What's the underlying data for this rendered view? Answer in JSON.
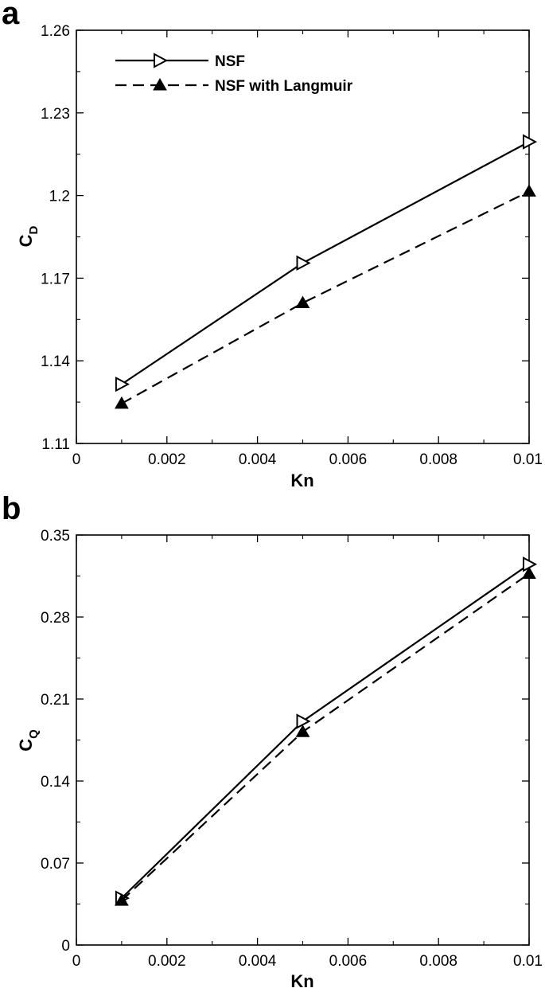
{
  "chart_data": [
    {
      "type": "line",
      "panel_label": "a",
      "xlabel": "Kn",
      "ylabel": {
        "main": "C",
        "sub": "D"
      },
      "xlim": [
        0,
        0.01
      ],
      "ylim": [
        1.11,
        1.26
      ],
      "xticks": [
        "0",
        "0.002",
        "0.004",
        "0.006",
        "0.008",
        "0.01"
      ],
      "yticks": [
        "1.11",
        "1.14",
        "1.17",
        "1.2",
        "1.23",
        "1.26"
      ],
      "grid": false,
      "legend_position": "top-left",
      "x": [
        0.001,
        0.005,
        0.01
      ],
      "series": [
        {
          "name": "NSF",
          "values": [
            1.1315,
            1.1755,
            1.2195
          ],
          "line_style": "solid",
          "marker": "open-right-triangle",
          "color": "#000000"
        },
        {
          "name": "NSF with Langmuir",
          "values": [
            1.1245,
            1.161,
            1.2015
          ],
          "line_style": "dashed",
          "marker": "filled-up-triangle",
          "color": "#000000"
        }
      ]
    },
    {
      "type": "line",
      "panel_label": "b",
      "xlabel": "Kn",
      "ylabel": {
        "main": "C",
        "sub": "Q"
      },
      "xlim": [
        0,
        0.01
      ],
      "ylim": [
        0,
        0.35
      ],
      "xticks": [
        "0",
        "0.002",
        "0.004",
        "0.006",
        "0.008",
        "0.01"
      ],
      "yticks": [
        "0",
        "0.07",
        "0.14",
        "0.21",
        "0.28",
        "0.35"
      ],
      "grid": false,
      "x": [
        0.001,
        0.005,
        0.01
      ],
      "series": [
        {
          "name": "NSF",
          "values": [
            0.04,
            0.191,
            0.325
          ],
          "line_style": "solid",
          "marker": "open-right-triangle",
          "color": "#000000"
        },
        {
          "name": "NSF with Langmuir",
          "values": [
            0.038,
            0.182,
            0.317
          ],
          "line_style": "dashed",
          "marker": "filled-up-triangle",
          "color": "#000000"
        }
      ]
    }
  ]
}
